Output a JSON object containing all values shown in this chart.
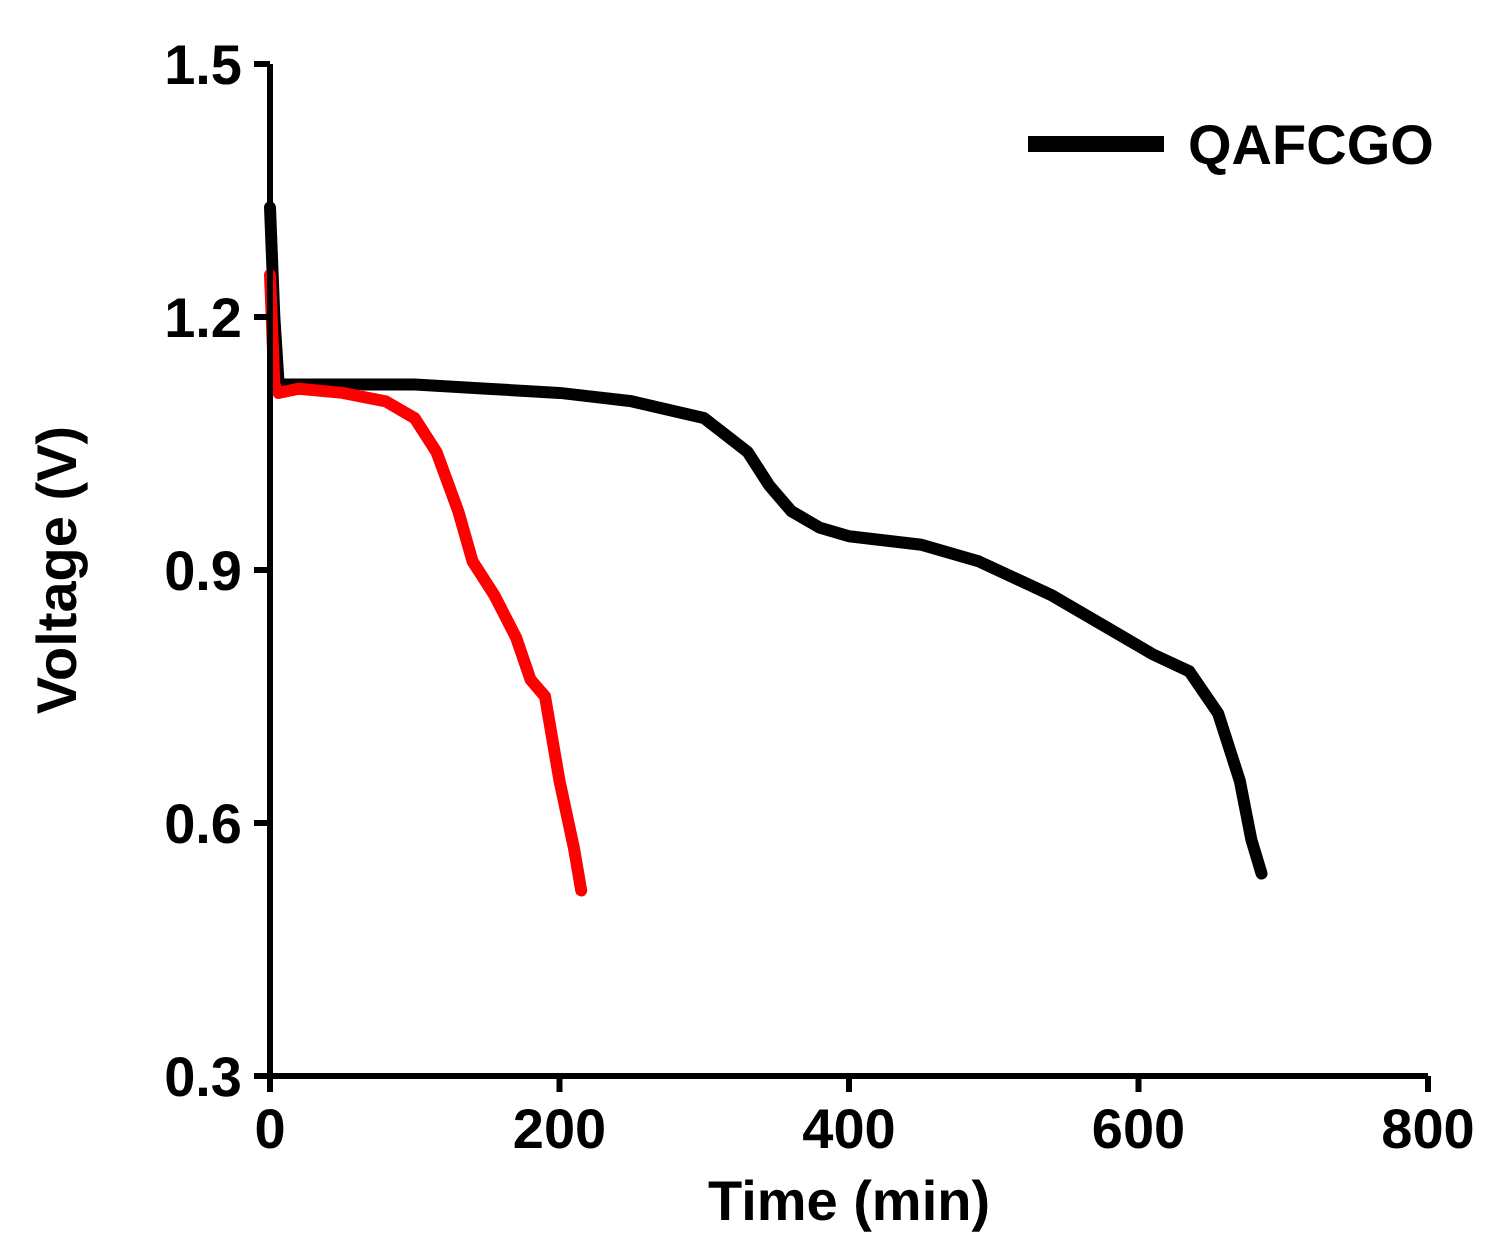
{
  "chart_data": {
    "type": "line",
    "xlabel": "Time (min)",
    "ylabel": "Voltage (V)",
    "xlim": [
      0,
      800
    ],
    "xticks": [
      0,
      200,
      400,
      600,
      800
    ],
    "ylim": [
      0.3,
      1.5
    ],
    "yticks": [
      0.3,
      0.6,
      0.9,
      1.2,
      1.5
    ],
    "legend": "top right",
    "grid": false,
    "line_style": "solid",
    "series": [
      {
        "name": "QAFCGO",
        "color": "#000000",
        "x": [
          0,
          3,
          6,
          50,
          100,
          150,
          200,
          250,
          300,
          330,
          345,
          360,
          380,
          400,
          450,
          490,
          540,
          580,
          610,
          635,
          655,
          670,
          678,
          685
        ],
        "values": [
          1.33,
          1.2,
          1.12,
          1.12,
          1.12,
          1.115,
          1.11,
          1.1,
          1.08,
          1.04,
          1.0,
          0.97,
          0.95,
          0.94,
          0.93,
          0.91,
          0.87,
          0.83,
          0.8,
          0.78,
          0.73,
          0.65,
          0.58,
          0.54
        ]
      },
      {
        "color": "#ff0000",
        "x": [
          0,
          3,
          6,
          20,
          50,
          80,
          100,
          115,
          130,
          140,
          155,
          170,
          180,
          190,
          200,
          210,
          215
        ],
        "values": [
          1.25,
          1.12,
          1.11,
          1.115,
          1.11,
          1.1,
          1.08,
          1.04,
          0.97,
          0.91,
          0.87,
          0.82,
          0.77,
          0.75,
          0.65,
          0.57,
          0.52
        ]
      }
    ]
  }
}
